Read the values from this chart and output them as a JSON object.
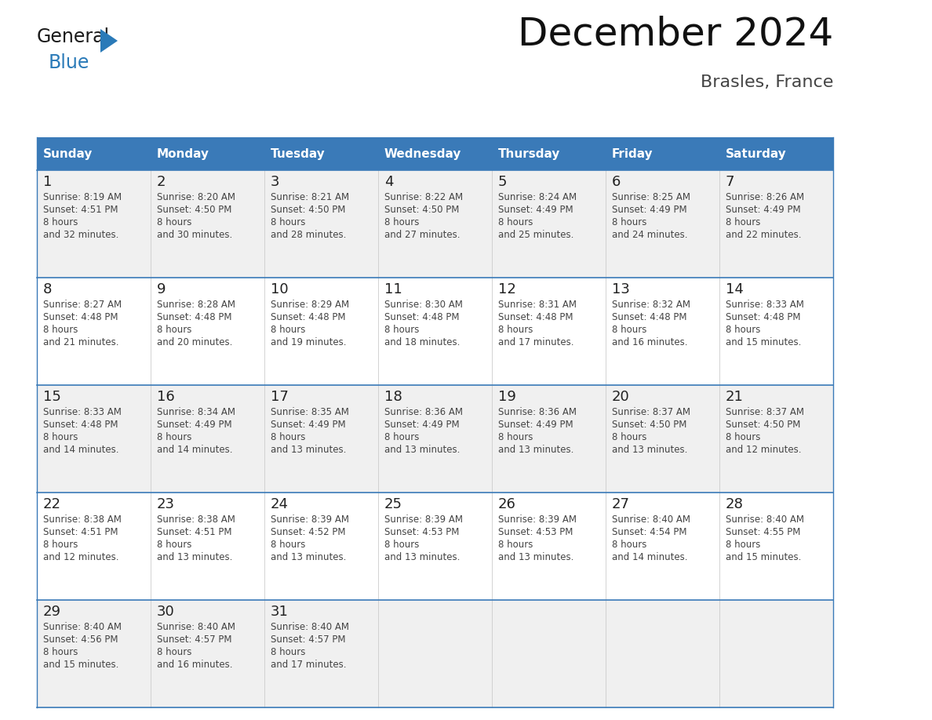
{
  "title": "December 2024",
  "subtitle": "Brasles, France",
  "days_of_week": [
    "Sunday",
    "Monday",
    "Tuesday",
    "Wednesday",
    "Thursday",
    "Friday",
    "Saturday"
  ],
  "header_bg_color": "#3a7ab8",
  "header_text_color": "#ffffff",
  "cell_bg_even": "#f0f0f0",
  "cell_bg_odd": "#ffffff",
  "cell_text_color": "#444444",
  "day_num_color": "#222222",
  "border_color": "#3a7ab8",
  "title_color": "#111111",
  "subtitle_color": "#444444",
  "logo_black": "#1a1a1a",
  "logo_blue": "#2a7ab8",
  "logo_triangle_color": "#2a7ab8",
  "weeks": [
    [
      {
        "day": 1,
        "sunrise": "8:19 AM",
        "sunset": "4:51 PM",
        "daylight": "8 hours\nand 32 minutes."
      },
      {
        "day": 2,
        "sunrise": "8:20 AM",
        "sunset": "4:50 PM",
        "daylight": "8 hours\nand 30 minutes."
      },
      {
        "day": 3,
        "sunrise": "8:21 AM",
        "sunset": "4:50 PM",
        "daylight": "8 hours\nand 28 minutes."
      },
      {
        "day": 4,
        "sunrise": "8:22 AM",
        "sunset": "4:50 PM",
        "daylight": "8 hours\nand 27 minutes."
      },
      {
        "day": 5,
        "sunrise": "8:24 AM",
        "sunset": "4:49 PM",
        "daylight": "8 hours\nand 25 minutes."
      },
      {
        "day": 6,
        "sunrise": "8:25 AM",
        "sunset": "4:49 PM",
        "daylight": "8 hours\nand 24 minutes."
      },
      {
        "day": 7,
        "sunrise": "8:26 AM",
        "sunset": "4:49 PM",
        "daylight": "8 hours\nand 22 minutes."
      }
    ],
    [
      {
        "day": 8,
        "sunrise": "8:27 AM",
        "sunset": "4:48 PM",
        "daylight": "8 hours\nand 21 minutes."
      },
      {
        "day": 9,
        "sunrise": "8:28 AM",
        "sunset": "4:48 PM",
        "daylight": "8 hours\nand 20 minutes."
      },
      {
        "day": 10,
        "sunrise": "8:29 AM",
        "sunset": "4:48 PM",
        "daylight": "8 hours\nand 19 minutes."
      },
      {
        "day": 11,
        "sunrise": "8:30 AM",
        "sunset": "4:48 PM",
        "daylight": "8 hours\nand 18 minutes."
      },
      {
        "day": 12,
        "sunrise": "8:31 AM",
        "sunset": "4:48 PM",
        "daylight": "8 hours\nand 17 minutes."
      },
      {
        "day": 13,
        "sunrise": "8:32 AM",
        "sunset": "4:48 PM",
        "daylight": "8 hours\nand 16 minutes."
      },
      {
        "day": 14,
        "sunrise": "8:33 AM",
        "sunset": "4:48 PM",
        "daylight": "8 hours\nand 15 minutes."
      }
    ],
    [
      {
        "day": 15,
        "sunrise": "8:33 AM",
        "sunset": "4:48 PM",
        "daylight": "8 hours\nand 14 minutes."
      },
      {
        "day": 16,
        "sunrise": "8:34 AM",
        "sunset": "4:49 PM",
        "daylight": "8 hours\nand 14 minutes."
      },
      {
        "day": 17,
        "sunrise": "8:35 AM",
        "sunset": "4:49 PM",
        "daylight": "8 hours\nand 13 minutes."
      },
      {
        "day": 18,
        "sunrise": "8:36 AM",
        "sunset": "4:49 PM",
        "daylight": "8 hours\nand 13 minutes."
      },
      {
        "day": 19,
        "sunrise": "8:36 AM",
        "sunset": "4:49 PM",
        "daylight": "8 hours\nand 13 minutes."
      },
      {
        "day": 20,
        "sunrise": "8:37 AM",
        "sunset": "4:50 PM",
        "daylight": "8 hours\nand 13 minutes."
      },
      {
        "day": 21,
        "sunrise": "8:37 AM",
        "sunset": "4:50 PM",
        "daylight": "8 hours\nand 12 minutes."
      }
    ],
    [
      {
        "day": 22,
        "sunrise": "8:38 AM",
        "sunset": "4:51 PM",
        "daylight": "8 hours\nand 12 minutes."
      },
      {
        "day": 23,
        "sunrise": "8:38 AM",
        "sunset": "4:51 PM",
        "daylight": "8 hours\nand 13 minutes."
      },
      {
        "day": 24,
        "sunrise": "8:39 AM",
        "sunset": "4:52 PM",
        "daylight": "8 hours\nand 13 minutes."
      },
      {
        "day": 25,
        "sunrise": "8:39 AM",
        "sunset": "4:53 PM",
        "daylight": "8 hours\nand 13 minutes."
      },
      {
        "day": 26,
        "sunrise": "8:39 AM",
        "sunset": "4:53 PM",
        "daylight": "8 hours\nand 13 minutes."
      },
      {
        "day": 27,
        "sunrise": "8:40 AM",
        "sunset": "4:54 PM",
        "daylight": "8 hours\nand 14 minutes."
      },
      {
        "day": 28,
        "sunrise": "8:40 AM",
        "sunset": "4:55 PM",
        "daylight": "8 hours\nand 15 minutes."
      }
    ],
    [
      {
        "day": 29,
        "sunrise": "8:40 AM",
        "sunset": "4:56 PM",
        "daylight": "8 hours\nand 15 minutes."
      },
      {
        "day": 30,
        "sunrise": "8:40 AM",
        "sunset": "4:57 PM",
        "daylight": "8 hours\nand 16 minutes."
      },
      {
        "day": 31,
        "sunrise": "8:40 AM",
        "sunset": "4:57 PM",
        "daylight": "8 hours\nand 17 minutes."
      },
      null,
      null,
      null,
      null
    ]
  ]
}
